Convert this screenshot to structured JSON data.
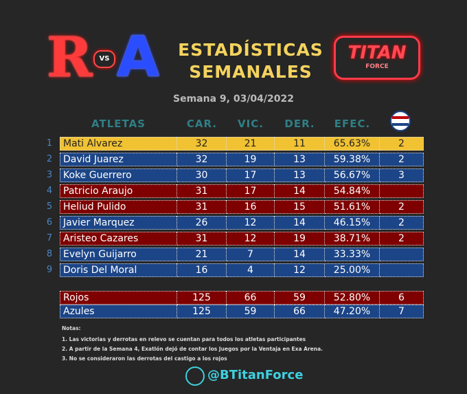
{
  "header": {
    "logo_left": {
      "r": "R",
      "vs": "VS",
      "a": "A"
    },
    "title_line1": "ESTADÍSTICAS",
    "title_line2": "SEMANALES",
    "logo_right": {
      "main": "TITAN",
      "sub": "FORCE"
    }
  },
  "subtitle": "Semana 9, 03/04/2022",
  "table": {
    "columns": [
      "ATLETAS",
      "CAR.",
      "VIC.",
      "DER.",
      "EFEC."
    ],
    "rows": [
      {
        "rank": 1,
        "name": "Mati Alvarez",
        "car": 32,
        "vic": 21,
        "der": 11,
        "efec": "65.63%",
        "pts": 2,
        "color": "#f1c232"
      },
      {
        "rank": 2,
        "name": "David Juarez",
        "car": 32,
        "vic": 19,
        "der": 13,
        "efec": "59.38%",
        "pts": 2,
        "color": "#1c4587"
      },
      {
        "rank": 3,
        "name": "Koke Guerrero",
        "car": 30,
        "vic": 17,
        "der": 13,
        "efec": "56.67%",
        "pts": 3,
        "color": "#1c4587"
      },
      {
        "rank": 4,
        "name": "Patricio Araujo",
        "car": 31,
        "vic": 17,
        "der": 14,
        "efec": "54.84%",
        "pts": null,
        "color": "#7f0000"
      },
      {
        "rank": 5,
        "name": "Heliud Pulido",
        "car": 31,
        "vic": 16,
        "der": 15,
        "efec": "51.61%",
        "pts": 2,
        "color": "#7f0000"
      },
      {
        "rank": 6,
        "name": "Javier Marquez",
        "car": 26,
        "vic": 12,
        "der": 14,
        "efec": "46.15%",
        "pts": 2,
        "color": "#1c4587"
      },
      {
        "rank": 7,
        "name": "Aristeo Cazares",
        "car": 31,
        "vic": 12,
        "der": 19,
        "efec": "38.71%",
        "pts": 2,
        "color": "#7f0000"
      },
      {
        "rank": 8,
        "name": "Evelyn Guijarro",
        "car": 21,
        "vic": 7,
        "der": 14,
        "efec": "33.33%",
        "pts": null,
        "color": "#1c4587"
      },
      {
        "rank": 9,
        "name": "Doris Del Moral",
        "car": 16,
        "vic": 4,
        "der": 12,
        "efec": "25.00%",
        "pts": null,
        "color": "#1c4587"
      }
    ],
    "totals": [
      {
        "name": "Rojos",
        "car": 125,
        "vic": 66,
        "der": 59,
        "efec": "52.80%",
        "pts": 6,
        "color": "#7f0000"
      },
      {
        "name": "Azules",
        "car": 125,
        "vic": 59,
        "der": 66,
        "efec": "47.20%",
        "pts": 7,
        "color": "#1c4587"
      }
    ]
  },
  "notes": {
    "title": "Notas:",
    "items": [
      "1. Las victorias y derrotas en relevo se cuentan para todos los atletas participantes",
      "2. A partir de la Semana 4, Exatlón dejó de contar los Juegos por la Ventaja en Exa Arena.",
      "3. No se consideraron las derrotas del castigo a los rojos"
    ]
  },
  "footer": {
    "handle": "@BTitanForce"
  }
}
